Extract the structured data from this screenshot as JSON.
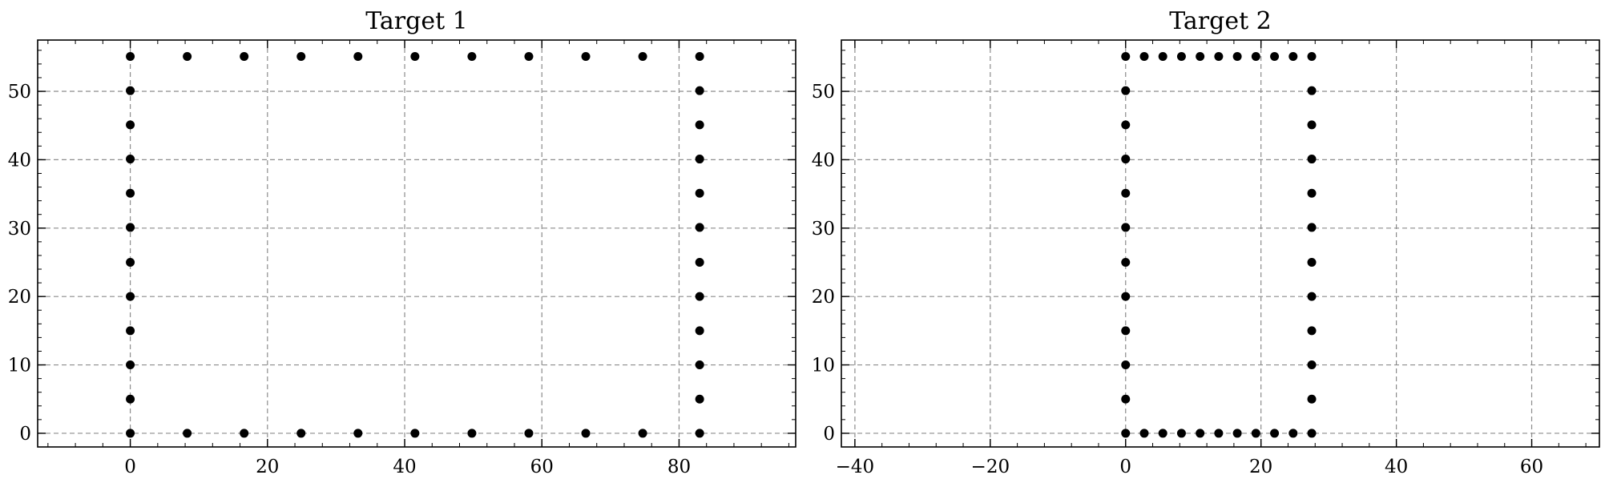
{
  "chart_data": [
    {
      "type": "scatter",
      "title": "Target 1",
      "xlabel": "",
      "ylabel": "",
      "xlim": [
        -13.5,
        97
      ],
      "ylim": [
        -2,
        57.5
      ],
      "xticks": [
        0,
        20,
        40,
        60,
        80
      ],
      "xtick_labels": [
        "0",
        "20",
        "40",
        "60",
        "80"
      ],
      "yticks": [
        0,
        10,
        20,
        30,
        40,
        50
      ],
      "ytick_labels": [
        "0",
        "10",
        "20",
        "30",
        "40",
        "50"
      ],
      "grid": true,
      "series": [
        {
          "color": "#000000",
          "x": [
            0,
            8.3,
            16.6,
            24.9,
            33.2,
            41.5,
            49.8,
            58.1,
            66.4,
            74.7,
            83,
            83,
            83,
            83,
            83,
            83,
            83,
            83,
            83,
            83,
            83,
            83,
            74.7,
            66.4,
            58.1,
            49.8,
            41.5,
            33.2,
            24.9,
            16.6,
            8.3,
            0,
            0,
            0,
            0,
            0,
            0,
            0,
            0,
            0,
            0,
            0
          ],
          "y": [
            0,
            0,
            0,
            0,
            0,
            0,
            0,
            0,
            0,
            0,
            0,
            5,
            10,
            15,
            20,
            25,
            30.1,
            35.1,
            40.1,
            45.1,
            50.1,
            55.1,
            55.1,
            55.1,
            55.1,
            55.1,
            55.1,
            55.1,
            55.1,
            55.1,
            55.1,
            55.1,
            50.1,
            45.1,
            40.1,
            35.1,
            30.1,
            25,
            20,
            15,
            10,
            5
          ]
        }
      ]
    },
    {
      "type": "scatter",
      "title": "Target 2",
      "xlabel": "",
      "ylabel": "",
      "xlim": [
        -42,
        70
      ],
      "ylim": [
        -2,
        57.5
      ],
      "xticks": [
        -40,
        -20,
        0,
        20,
        40,
        60
      ],
      "xtick_labels": [
        "−40",
        "−20",
        "0",
        "20",
        "40",
        "60"
      ],
      "yticks": [
        0,
        10,
        20,
        30,
        40,
        50
      ],
      "ytick_labels": [
        "0",
        "10",
        "20",
        "30",
        "40",
        "50"
      ],
      "grid": true,
      "series": [
        {
          "color": "#000000",
          "x": [
            0,
            2.75,
            5.5,
            8.25,
            11,
            13.75,
            16.5,
            19.25,
            22,
            24.75,
            27.5,
            27.5,
            27.5,
            27.5,
            27.5,
            27.5,
            27.5,
            27.5,
            27.5,
            27.5,
            27.5,
            27.5,
            24.75,
            22,
            19.25,
            16.5,
            13.75,
            11,
            8.25,
            5.5,
            2.75,
            0,
            0,
            0,
            0,
            0,
            0,
            0,
            0,
            0,
            0,
            0
          ],
          "y": [
            0,
            0,
            0,
            0,
            0,
            0,
            0,
            0,
            0,
            0,
            0,
            5,
            10,
            15,
            20,
            25,
            30.1,
            35.1,
            40.1,
            45.1,
            50.1,
            55.1,
            55.1,
            55.1,
            55.1,
            55.1,
            55.1,
            55.1,
            55.1,
            55.1,
            55.1,
            55.1,
            50.1,
            45.1,
            40.1,
            35.1,
            30.1,
            25,
            20,
            15,
            10,
            5
          ]
        }
      ]
    }
  ]
}
